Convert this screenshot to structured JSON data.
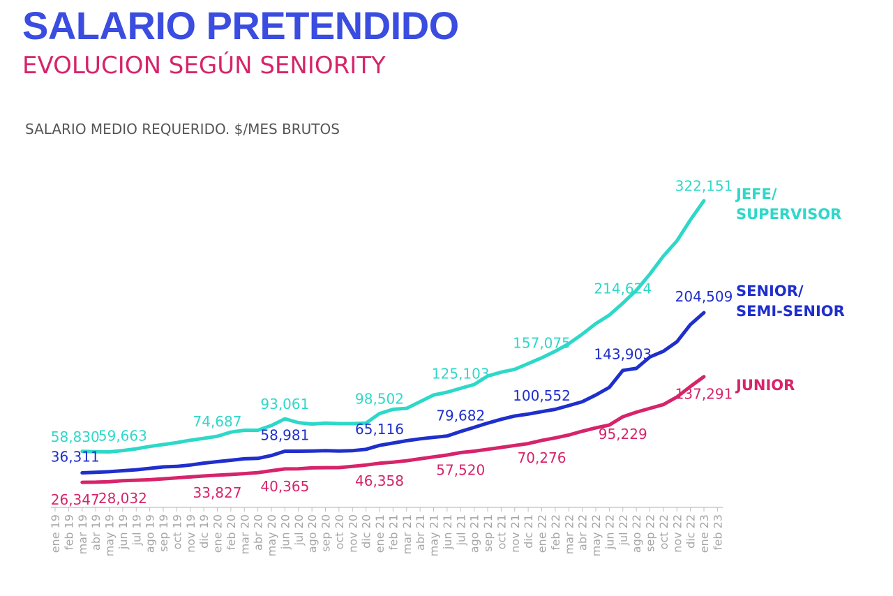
{
  "header": {
    "title": "SALARIO PRETENDIDO",
    "subtitle": "EVOLUCION SEGÚN SENIORITY",
    "measure_label": "SALARIO MEDIO REQUERIDO. $/MES BRUTOS"
  },
  "colors": {
    "title": "#3a4de0",
    "subtitle": "#d6246a",
    "measure": "#555555",
    "axis": "#bfbfbf",
    "tick_text": "#a6a6a6"
  },
  "chart_data": {
    "type": "line",
    "title": "SALARIO PRETENDIDO",
    "subtitle": "EVOLUCION SEGÚN SENIORITY",
    "ylabel": "SALARIO MEDIO REQUERIDO. $/MES BRUTOS",
    "xlabel": "",
    "ylim": [
      0,
      350000
    ],
    "grid": false,
    "legend": "right (direct labels at line ends)",
    "categories": [
      "ene 19",
      "feb 19",
      "mar 19",
      "abr 19",
      "may 19",
      "jun 19",
      "jul 19",
      "ago 19",
      "sep 19",
      "oct 19",
      "nov 19",
      "dic 19",
      "ene 20",
      "feb 20",
      "mar 20",
      "abr 20",
      "may 20",
      "jun 20",
      "jul 20",
      "ago 20",
      "sep 20",
      "oct 20",
      "nov 20",
      "dic 20",
      "ene 21",
      "feb 21",
      "mar 21",
      "abr 21",
      "may 21",
      "jun 21",
      "jul 21",
      "ago 21",
      "sep 21",
      "oct 21",
      "nov 21",
      "dic 21",
      "ene 22",
      "feb 22",
      "mar 22",
      "abr 22",
      "may 22",
      "jun 22",
      "jul 22",
      "ago 22",
      "sep 22",
      "oct 22",
      "nov 22",
      "dic 22",
      "ene 23",
      "feb 23"
    ],
    "series": [
      {
        "name": "JEFE/ SUPERVISOR",
        "label_lines": [
          "JEFE/",
          "SUPERVISOR"
        ],
        "color": "#2ed8c8",
        "values": [
          null,
          null,
          58830,
          58500,
          58300,
          59663,
          61500,
          64000,
          66000,
          68000,
          70500,
          72500,
          74687,
          79000,
          81000,
          81000,
          86000,
          93061,
          89000,
          87500,
          88500,
          88000,
          88000,
          88500,
          98502,
          103000,
          104000,
          111000,
          118000,
          121000,
          125103,
          129000,
          138000,
          142000,
          145000,
          151000,
          157075,
          164000,
          172000,
          182000,
          193000,
          202000,
          214624,
          228000,
          245000,
          264000,
          280000,
          302000,
          322151,
          null
        ],
        "labels": [
          {
            "index": 2,
            "value": 58830,
            "text": "58,830"
          },
          {
            "index": 5,
            "value": 59663,
            "text": "59,663"
          },
          {
            "index": 12,
            "value": 74687,
            "text": "74,687"
          },
          {
            "index": 17,
            "value": 93061,
            "text": "93,061"
          },
          {
            "index": 24,
            "value": 98502,
            "text": "98,502"
          },
          {
            "index": 30,
            "value": 125103,
            "text": "125,103"
          },
          {
            "index": 36,
            "value": 157075,
            "text": "157,075"
          },
          {
            "index": 42,
            "value": 214624,
            "text": "214,624"
          },
          {
            "index": 48,
            "value": 322151,
            "text": "322,151"
          }
        ]
      },
      {
        "name": "SENIOR/ SEMI-SENIOR",
        "label_lines": [
          "SENIOR/",
          "SEMI-SENIOR"
        ],
        "color": "#1f2fcc",
        "values": [
          null,
          null,
          36311,
          36800,
          37500,
          38500,
          39500,
          41000,
          42500,
          43000,
          44500,
          46500,
          48000,
          49500,
          51000,
          51500,
          54500,
          58981,
          59000,
          59200,
          59500,
          59200,
          59500,
          61000,
          65116,
          67500,
          70000,
          72000,
          73500,
          75000,
          79682,
          84000,
          88500,
          92500,
          96000,
          98000,
          100552,
          103000,
          107000,
          111000,
          118000,
          126000,
          143903,
          146000,
          158000,
          164000,
          174000,
          192000,
          204509,
          null
        ],
        "labels": [
          {
            "index": 2,
            "value": 36311,
            "text": "36,311"
          },
          {
            "index": 17,
            "value": 58981,
            "text": "58,981"
          },
          {
            "index": 24,
            "value": 65116,
            "text": "65,116"
          },
          {
            "index": 30,
            "value": 79682,
            "text": "79,682"
          },
          {
            "index": 36,
            "value": 100552,
            "text": "100,552"
          },
          {
            "index": 42,
            "value": 143903,
            "text": "143,903"
          },
          {
            "index": 48,
            "value": 204509,
            "text": "204,509"
          }
        ]
      },
      {
        "name": "JUNIOR",
        "label_lines": [
          "JUNIOR"
        ],
        "color": "#d6246a",
        "values": [
          null,
          null,
          26347,
          26500,
          27000,
          28032,
          28500,
          29000,
          30000,
          31000,
          32000,
          33000,
          33827,
          34500,
          35500,
          36500,
          38500,
          40365,
          40500,
          41500,
          41700,
          41800,
          43000,
          44500,
          46358,
          47500,
          49000,
          51000,
          53000,
          55000,
          57520,
          59000,
          61000,
          63000,
          65000,
          67000,
          70276,
          73000,
          76000,
          80000,
          83500,
          86500,
          95229,
          100000,
          104000,
          108000,
          116000,
          127000,
          137291,
          null
        ],
        "labels": [
          {
            "index": 2,
            "value": 26347,
            "text": "26,347"
          },
          {
            "index": 5,
            "value": 28032,
            "text": "28,032"
          },
          {
            "index": 12,
            "value": 33827,
            "text": "33,827"
          },
          {
            "index": 17,
            "value": 40365,
            "text": "40,365"
          },
          {
            "index": 24,
            "value": 46358,
            "text": "46,358"
          },
          {
            "index": 30,
            "value": 57520,
            "text": "57,520"
          },
          {
            "index": 36,
            "value": 70276,
            "text": "70,276"
          },
          {
            "index": 42,
            "value": 95229,
            "text": "95,229"
          },
          {
            "index": 48,
            "value": 137291,
            "text": "137,291"
          }
        ]
      }
    ]
  }
}
